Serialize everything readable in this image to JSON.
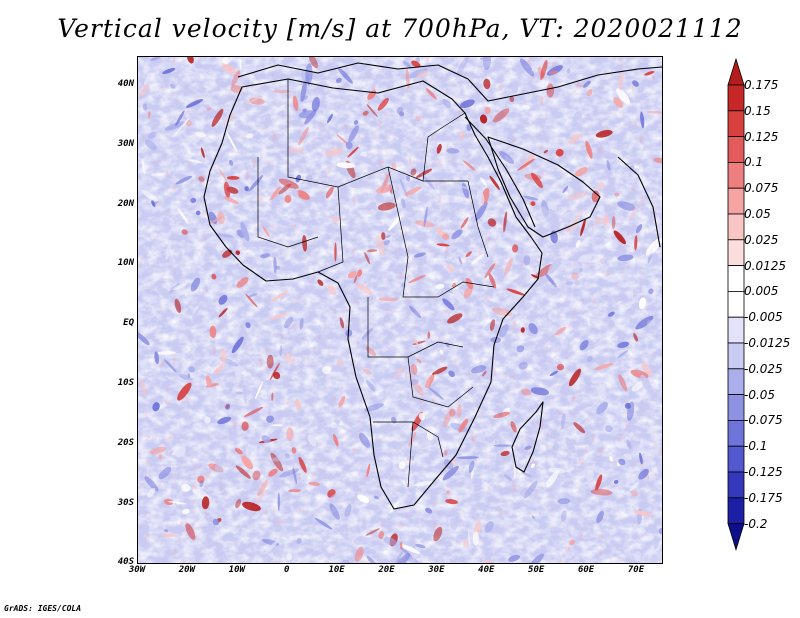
{
  "title": "Vertical velocity [m/s] at 700hPa, VT: 2020021112",
  "map": {
    "lon_range": [
      -30,
      75
    ],
    "lat_range": [
      -40,
      45
    ],
    "lat_labels": [
      "40N",
      "30N",
      "20N",
      "10N",
      "EQ",
      "10S",
      "20S",
      "30S",
      "40S"
    ],
    "lon_labels": [
      "30W",
      "20W",
      "10W",
      "0",
      "10E",
      "20E",
      "30E",
      "40E",
      "50E",
      "60E",
      "70E"
    ]
  },
  "colorbar": {
    "levels": [
      "0.175",
      "0.15",
      "0.125",
      "0.1",
      "0.075",
      "0.05",
      "0.025",
      "0.0125",
      "0.005",
      "-0.005",
      "-0.0125",
      "-0.025",
      "-0.05",
      "-0.075",
      "-0.1",
      "-0.125",
      "-0.175",
      "-0.2"
    ],
    "colors": [
      "#b71c1c",
      "#c62828",
      "#d84040",
      "#e35b5b",
      "#ee7f7f",
      "#f5a3a3",
      "#f9c6c6",
      "#fcdede",
      "#ffffff",
      "#ffffff",
      "#e2e3f8",
      "#c9cbf2",
      "#aaaeeb",
      "#8e92e3",
      "#6f74da",
      "#5358cf",
      "#3438bd",
      "#1c1fa6",
      "#0d0f8a"
    ]
  },
  "credit": "GrADS: IGES/COLA"
}
